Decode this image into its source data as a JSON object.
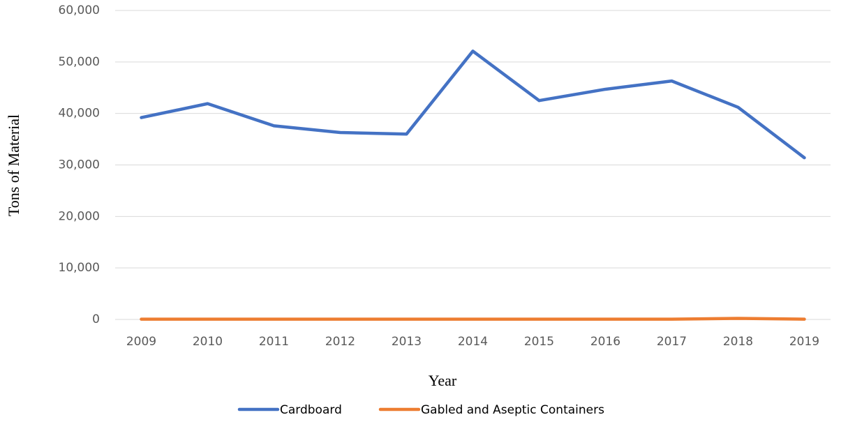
{
  "chart_data": {
    "type": "line",
    "x_label": "Year",
    "y_label": "Tons of Material",
    "categories": [
      "2009",
      "2010",
      "2011",
      "2012",
      "2013",
      "2014",
      "2015",
      "2016",
      "2017",
      "2018",
      "2019"
    ],
    "series": [
      {
        "name": "Cardboard",
        "color": "#4472c4",
        "values": [
          39200,
          41900,
          37600,
          36300,
          36000,
          52100,
          42500,
          44700,
          46300,
          41200,
          31400
        ]
      },
      {
        "name": "Gabled and Aseptic Containers",
        "color": "#ed7d31",
        "values": [
          50,
          50,
          50,
          50,
          50,
          50,
          50,
          50,
          50,
          200,
          50
        ]
      }
    ],
    "ylim": [
      0,
      60000
    ],
    "yticks": [
      0,
      {
        "value": 10000,
        "label": "10,000"
      },
      {
        "value": 20000,
        "label": "20,000"
      },
      {
        "value": 30000,
        "label": "30,000"
      },
      {
        "value": 40000,
        "label": "40,000"
      },
      {
        "value": 50000,
        "label": "50,000"
      },
      {
        "value": 60000,
        "label": "60,000"
      }
    ],
    "grid": true,
    "legend": "bottom"
  }
}
